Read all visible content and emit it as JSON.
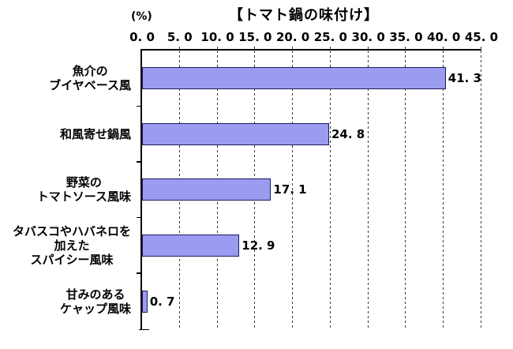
{
  "chart_data": {
    "type": "bar",
    "orientation": "horizontal",
    "title": "【トマト鍋の味付け】",
    "unit_label": "(%)",
    "categories": [
      [
        "魚介の",
        "ブイヤベース風"
      ],
      [
        "和風寄せ鍋風"
      ],
      [
        "野菜の",
        "トマトソース風味"
      ],
      [
        "タバスコやハバネロを",
        "加えた",
        "スパイシー風味"
      ],
      [
        "甘みのある",
        "ケャップ風味"
      ]
    ],
    "values": [
      41.3,
      24.8,
      17.1,
      12.9,
      0.7
    ],
    "value_labels": [
      "41. 3",
      "24. 8",
      "17. 1",
      "12. 9",
      "0. 7"
    ],
    "xlim": [
      0,
      45
    ],
    "xticks": [
      0,
      5,
      10,
      15,
      20,
      25,
      30,
      35,
      40,
      45
    ],
    "xtick_labels": [
      "0. 0",
      "5. 0",
      "10. 0",
      "15. 0",
      "20. 0",
      "25. 0",
      "30. 0",
      "35. 0",
      "40. 0",
      "45. 0"
    ],
    "grid": "dashed-vertical",
    "legend": "none",
    "colors": {
      "bar_fill": "#9b9bf0",
      "bar_border": "#1b1b60",
      "axis": "#000000",
      "gridline": "#3a3a3a",
      "text": "#000000",
      "background": "#ffffff"
    }
  }
}
